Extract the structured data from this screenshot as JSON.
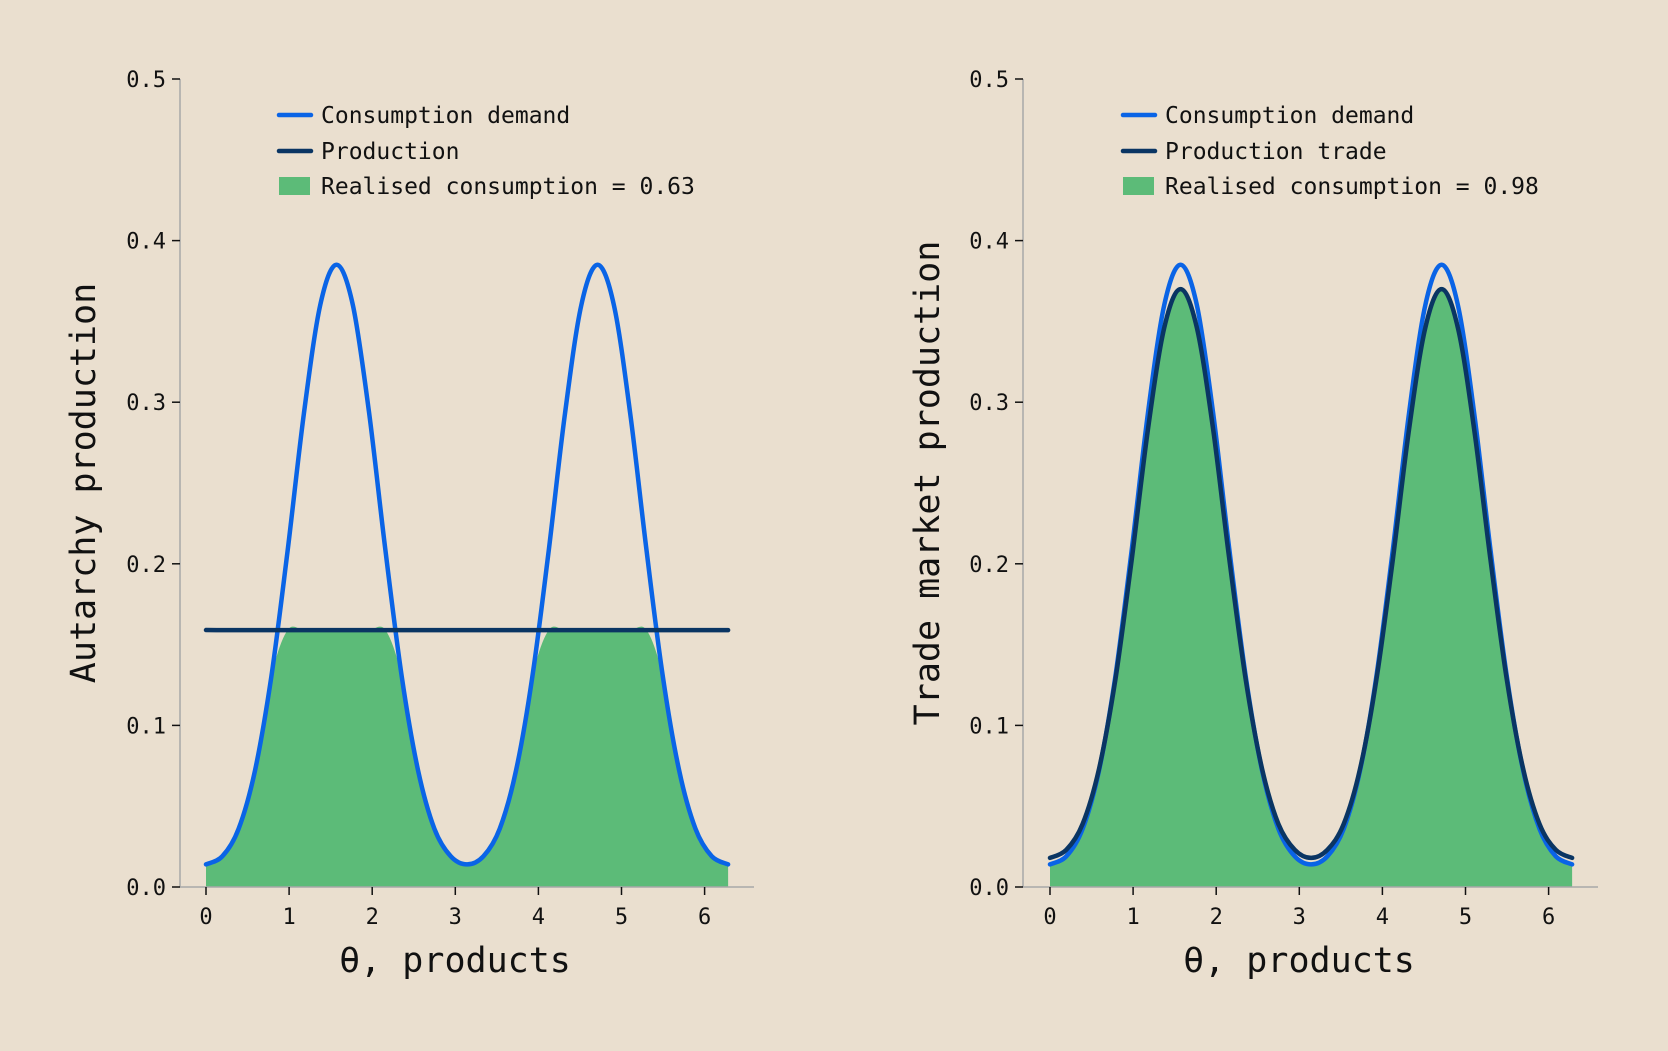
{
  "colors": {
    "background": "#eadfcf",
    "demand": "#0a64e6",
    "production": "#0a3563",
    "fill": "#5cbb78",
    "axis": "#a8a8a8"
  },
  "chart_data": [
    {
      "type": "line",
      "xlabel": "θ, products",
      "ylabel": "Autarchy production",
      "xlim": [
        -0.32,
        6.6
      ],
      "ylim": [
        0,
        0.5
      ],
      "xticks": [
        "0",
        "1",
        "2",
        "3",
        "4",
        "5",
        "6"
      ],
      "yticks": [
        "0.0",
        "0.1",
        "0.2",
        "0.3",
        "0.4",
        "0.5"
      ],
      "grid": false,
      "legend_position": "top-center",
      "legend": [
        "Consumption demand",
        "Production",
        "Realised consumption = 0.63"
      ],
      "x_step": "π/16",
      "x_range": [
        0,
        6.2832
      ],
      "series": [
        {
          "name": "Consumption demand",
          "values": [
            0.014,
            0.019,
            0.036,
            0.072,
            0.13,
            0.208,
            0.293,
            0.36,
            0.385,
            0.36,
            0.293,
            0.208,
            0.13,
            0.072,
            0.036,
            0.019,
            0.014,
            0.019,
            0.036,
            0.072,
            0.13,
            0.208,
            0.293,
            0.36,
            0.385,
            0.36,
            0.293,
            0.208,
            0.13,
            0.072,
            0.036,
            0.019,
            0.014
          ]
        },
        {
          "name": "Production",
          "values": [
            0.159,
            0.159,
            0.159,
            0.159,
            0.159,
            0.159,
            0.159,
            0.159,
            0.159,
            0.159,
            0.159,
            0.159,
            0.159,
            0.159,
            0.159,
            0.159,
            0.159,
            0.159,
            0.159,
            0.159,
            0.159,
            0.159,
            0.159,
            0.159,
            0.159,
            0.159,
            0.159,
            0.159,
            0.159,
            0.159,
            0.159,
            0.159,
            0.159
          ]
        }
      ],
      "fill": "min(Consumption demand, Production)",
      "realised_consumption": 0.63
    },
    {
      "type": "line",
      "xlabel": "θ, products",
      "ylabel": "Trade market production",
      "xlim": [
        -0.32,
        6.6
      ],
      "ylim": [
        0,
        0.5
      ],
      "xticks": [
        "0",
        "1",
        "2",
        "3",
        "4",
        "5",
        "6"
      ],
      "yticks": [
        "0.0",
        "0.1",
        "0.2",
        "0.3",
        "0.4",
        "0.5"
      ],
      "grid": false,
      "legend_position": "top-center",
      "legend": [
        "Consumption demand",
        "Production trade",
        "Realised consumption = 0.98"
      ],
      "x_step": "π/16",
      "x_range": [
        0,
        6.2832
      ],
      "series": [
        {
          "name": "Consumption demand",
          "values": [
            0.014,
            0.019,
            0.036,
            0.072,
            0.13,
            0.208,
            0.293,
            0.36,
            0.385,
            0.36,
            0.293,
            0.208,
            0.13,
            0.072,
            0.036,
            0.019,
            0.014,
            0.019,
            0.036,
            0.072,
            0.13,
            0.208,
            0.293,
            0.36,
            0.385,
            0.36,
            0.293,
            0.208,
            0.13,
            0.072,
            0.036,
            0.019,
            0.014
          ]
        },
        {
          "name": "Production trade",
          "values": [
            0.018,
            0.023,
            0.039,
            0.073,
            0.128,
            0.202,
            0.283,
            0.346,
            0.37,
            0.346,
            0.283,
            0.202,
            0.128,
            0.073,
            0.039,
            0.023,
            0.018,
            0.023,
            0.039,
            0.073,
            0.128,
            0.202,
            0.283,
            0.346,
            0.37,
            0.346,
            0.283,
            0.202,
            0.128,
            0.073,
            0.039,
            0.023,
            0.018
          ]
        }
      ],
      "fill": "min(Consumption demand, Production trade)",
      "realised_consumption": 0.98
    }
  ]
}
